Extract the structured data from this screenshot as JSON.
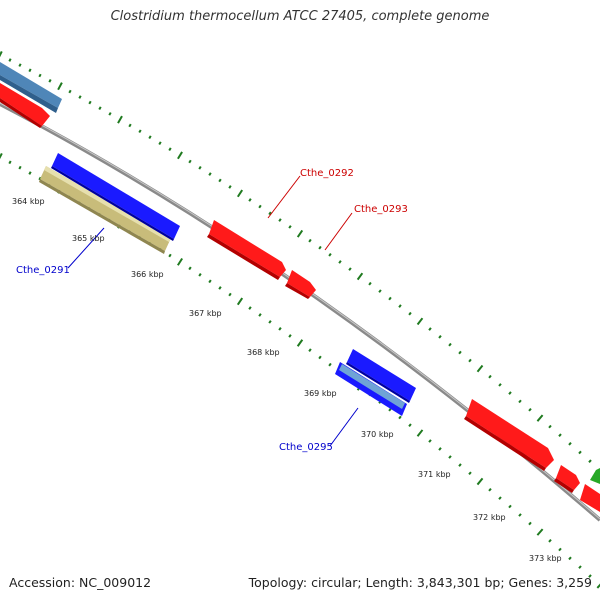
{
  "title": "Clostridium thermocellum ATCC 27405, complete genome",
  "footer": {
    "accession": "Accession: NC_009012",
    "summary": "Topology: circular; Length: 3,843,301 bp; Genes: 3,259"
  },
  "colors": {
    "backbone": "#8a8a8a",
    "tick": "#1f7a1f",
    "forward_cds": "#ff1a1a",
    "reverse_cds": "#1a1aff",
    "steelblue_feature": "#4f86b8",
    "khaki_feature": "#c8bc7a",
    "green_feature": "#27a827",
    "label_red": "#cc0000",
    "label_blue": "#0000cc"
  },
  "ruler_labels": [
    "364 kbp",
    "365 kbp",
    "366 kbp",
    "367 kbp",
    "368 kbp",
    "369 kbp",
    "370 kbp",
    "371 kbp",
    "372 kbp",
    "373 kbp"
  ],
  "gene_labels": [
    {
      "text": "Cthe_0291",
      "color": "blue"
    },
    {
      "text": "Cthe_0292",
      "color": "red"
    },
    {
      "text": "Cthe_0293",
      "color": "red"
    },
    {
      "text": "Cthe_0295",
      "color": "blue"
    }
  ]
}
